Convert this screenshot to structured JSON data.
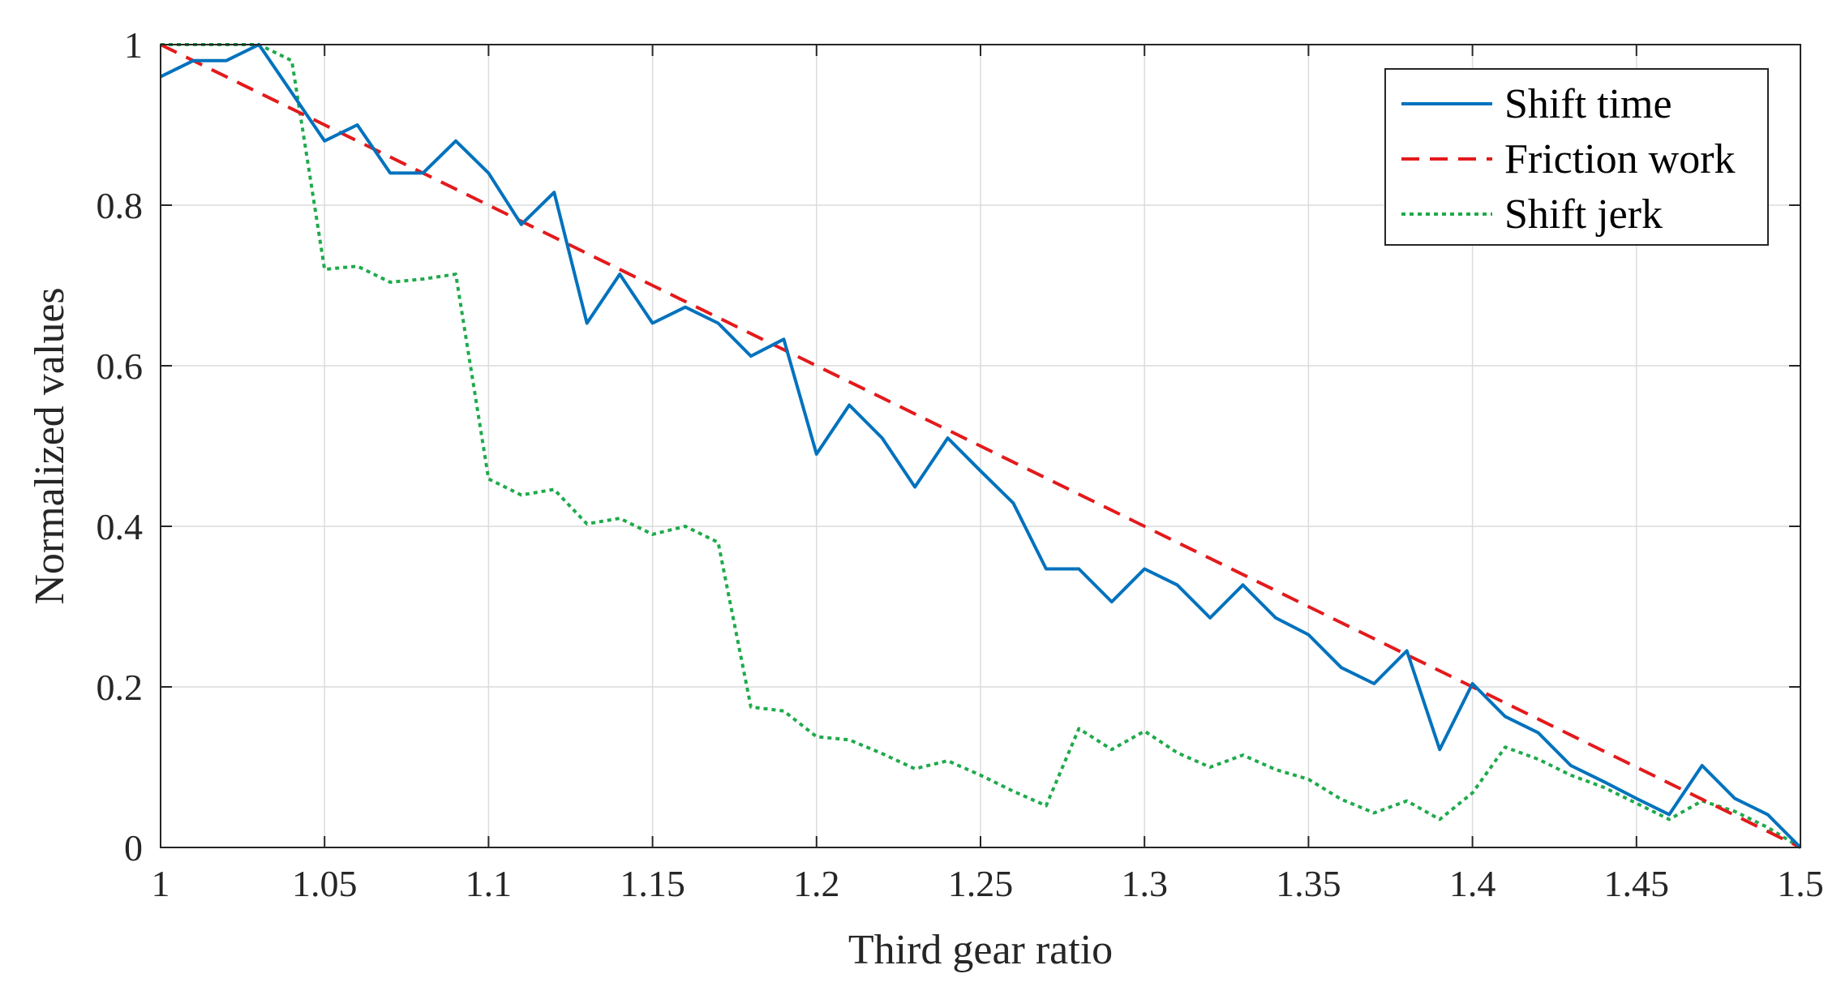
{
  "chart_data": {
    "type": "line",
    "title": "",
    "xlabel": "Third gear ratio",
    "ylabel": "Normalized values",
    "xlim": [
      1,
      1.5
    ],
    "ylim": [
      0,
      1
    ],
    "grid": true,
    "legend_position": "top-right",
    "x_ticks": [
      1,
      1.05,
      1.1,
      1.15,
      1.2,
      1.25,
      1.3,
      1.35,
      1.4,
      1.45,
      1.5
    ],
    "x_tick_labels": [
      "1",
      "1.05",
      "1.1",
      "1.15",
      "1.2",
      "1.25",
      "1.3",
      "1.35",
      "1.4",
      "1.45",
      "1.5"
    ],
    "y_ticks": [
      0,
      0.2,
      0.4,
      0.6,
      0.8,
      1
    ],
    "y_tick_labels": [
      "0",
      "0.2",
      "0.4",
      "0.6",
      "0.8",
      "1"
    ],
    "x": [
      1.0,
      1.01,
      1.02,
      1.03,
      1.04,
      1.05,
      1.06,
      1.07,
      1.08,
      1.09,
      1.1,
      1.11,
      1.12,
      1.13,
      1.14,
      1.15,
      1.16,
      1.17,
      1.18,
      1.19,
      1.2,
      1.21,
      1.22,
      1.23,
      1.24,
      1.25,
      1.26,
      1.27,
      1.28,
      1.29,
      1.3,
      1.31,
      1.32,
      1.33,
      1.34,
      1.35,
      1.36,
      1.37,
      1.38,
      1.39,
      1.4,
      1.41,
      1.42,
      1.43,
      1.44,
      1.45,
      1.46,
      1.47,
      1.48,
      1.49,
      1.5
    ],
    "series": [
      {
        "name": "Shift time",
        "color": "#0072BD",
        "style": "solid",
        "values": [
          0.96,
          0.98,
          0.98,
          1.0,
          0.94,
          0.88,
          0.9,
          0.84,
          0.84,
          0.88,
          0.84,
          0.776,
          0.816,
          0.653,
          0.714,
          0.653,
          0.673,
          0.653,
          0.612,
          0.633,
          0.49,
          0.551,
          0.51,
          0.449,
          0.51,
          0.469,
          0.429,
          0.347,
          0.347,
          0.306,
          0.347,
          0.327,
          0.286,
          0.327,
          0.286,
          0.265,
          0.224,
          0.204,
          0.245,
          0.122,
          0.204,
          0.163,
          0.143,
          0.102,
          0.082,
          0.061,
          0.041,
          0.102,
          0.061,
          0.041,
          0.0
        ]
      },
      {
        "name": "Friction work",
        "color": "#E31A1C",
        "style": "dashed",
        "values": [
          1.0,
          0.98,
          0.96,
          0.94,
          0.92,
          0.9,
          0.88,
          0.86,
          0.84,
          0.82,
          0.8,
          0.78,
          0.76,
          0.74,
          0.72,
          0.7,
          0.68,
          0.66,
          0.64,
          0.62,
          0.6,
          0.58,
          0.56,
          0.54,
          0.52,
          0.5,
          0.48,
          0.46,
          0.44,
          0.42,
          0.4,
          0.38,
          0.36,
          0.34,
          0.32,
          0.3,
          0.28,
          0.26,
          0.24,
          0.22,
          0.2,
          0.18,
          0.16,
          0.14,
          0.12,
          0.1,
          0.08,
          0.06,
          0.04,
          0.02,
          0.0
        ]
      },
      {
        "name": "Shift jerk",
        "color": "#1FAA4B",
        "style": "dotted",
        "values": [
          1.0,
          1.0,
          1.0,
          1.0,
          0.98,
          0.72,
          0.724,
          0.704,
          0.708,
          0.714,
          0.459,
          0.439,
          0.446,
          0.403,
          0.41,
          0.39,
          0.4,
          0.38,
          0.175,
          0.17,
          0.138,
          0.134,
          0.117,
          0.098,
          0.108,
          0.09,
          0.07,
          0.052,
          0.148,
          0.122,
          0.145,
          0.118,
          0.1,
          0.115,
          0.097,
          0.085,
          0.06,
          0.043,
          0.058,
          0.035,
          0.068,
          0.125,
          0.11,
          0.09,
          0.075,
          0.055,
          0.035,
          0.058,
          0.045,
          0.025,
          0.0
        ]
      }
    ]
  }
}
